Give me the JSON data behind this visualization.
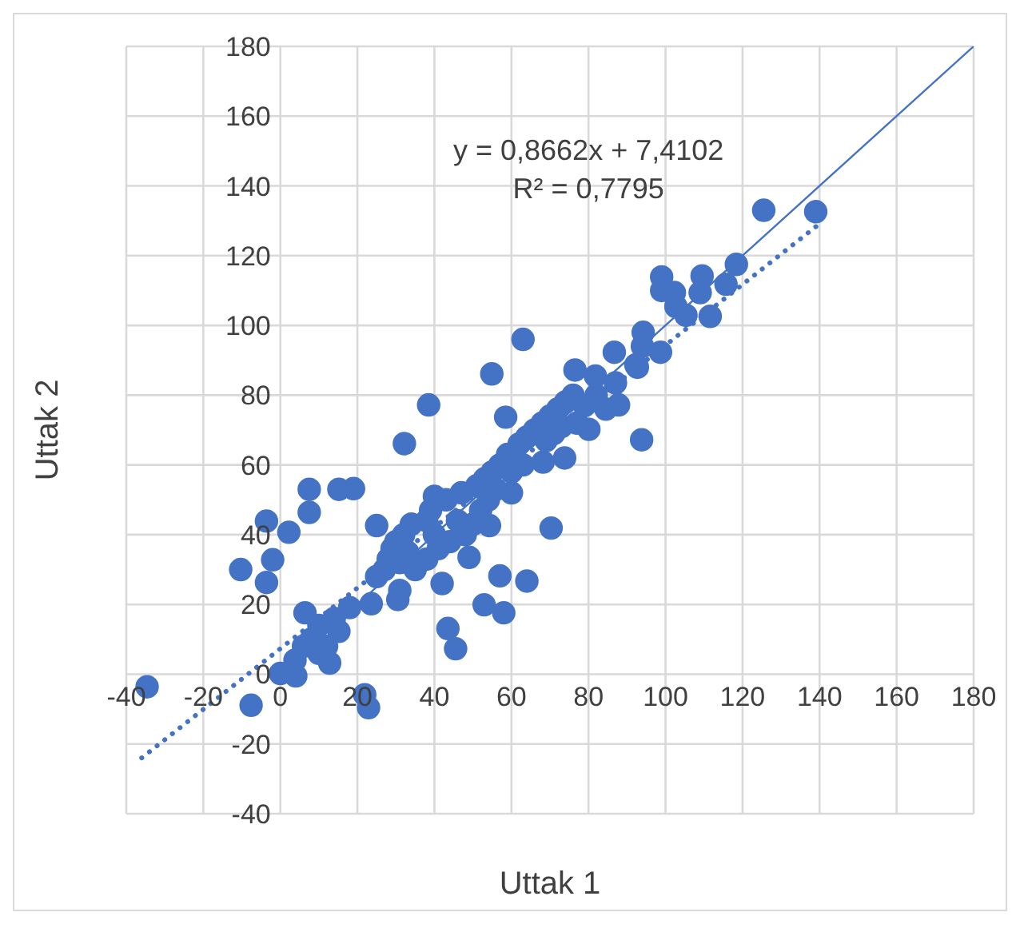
{
  "chart_data": {
    "type": "scatter",
    "xlabel": "Uttak 1",
    "ylabel": "Uttak 2",
    "annotations": [
      "y = 0,8662x + 7,4102",
      "R² = 0,7795"
    ],
    "xlim": [
      -40,
      180
    ],
    "ylim": [
      -40,
      180
    ],
    "xticks": [
      -40,
      -20,
      0,
      20,
      40,
      60,
      80,
      100,
      120,
      140,
      160,
      180
    ],
    "yticks": [
      -40,
      -20,
      0,
      20,
      40,
      60,
      80,
      100,
      120,
      140,
      160,
      180
    ],
    "grid": true,
    "legend": false,
    "marker": "circle",
    "series": [
      {
        "color": "#4472c4",
        "x": [
          125.5,
          139,
          118.4,
          115.7,
          109.5,
          109,
          111.6,
          99,
          99,
          102.3,
          102.7,
          105.3,
          98.7,
          94.2,
          94,
          92.3,
          86.7,
          76.5,
          81.8,
          63,
          54.9,
          38.5,
          58.5,
          32.2,
          7.5,
          15.2,
          19,
          7.5,
          -3.6,
          2.2,
          -2,
          -10.3,
          -3.6,
          25,
          70.3,
          49,
          42,
          57,
          64,
          52.9,
          58,
          43.5,
          45.5,
          30.5,
          31,
          23.6,
          18,
          6.4,
          15.2,
          12.8,
          0,
          4,
          3.8,
          -34.6,
          -7.6,
          21.9,
          22.9,
          8,
          10,
          12,
          14,
          10,
          6,
          87.8,
          84.5,
          93.8,
          80.1,
          73.8,
          68.2,
          54.3,
          92.7,
          87,
          25,
          27,
          28,
          29,
          30,
          31,
          32,
          33,
          34,
          35,
          38,
          38,
          39,
          40,
          40,
          41,
          43,
          44,
          46,
          47,
          48,
          50,
          51,
          52,
          53,
          54,
          55,
          56,
          57,
          59,
          60,
          60,
          62,
          63,
          64,
          66,
          68,
          69,
          70,
          71,
          72,
          73,
          74,
          76,
          77,
          79,
          82
        ],
        "values": [
          133,
          132.6,
          117.5,
          111.8,
          114.2,
          109.4,
          102.6,
          113.9,
          110,
          109.4,
          105.4,
          102.9,
          92.3,
          98,
          94,
          88.7,
          92.3,
          87.2,
          85.5,
          96,
          86.1,
          77.2,
          73.7,
          66.1,
          53,
          53,
          53.2,
          46.4,
          43.9,
          40.7,
          32.8,
          30,
          26.3,
          42.6,
          41.9,
          33.5,
          26,
          28.2,
          26.7,
          19.9,
          17.6,
          13.1,
          7.3,
          21.4,
          24,
          20.2,
          19.1,
          17.6,
          12.3,
          3.2,
          0.2,
          -0.5,
          4,
          -3.6,
          -8.9,
          -5.9,
          -9.6,
          10,
          14,
          8,
          16,
          6,
          8,
          77.2,
          76,
          67.2,
          70.2,
          62,
          60.8,
          42.6,
          88,
          83.5,
          28,
          30,
          33,
          36,
          38,
          32,
          40,
          35,
          43,
          30,
          44,
          33,
          47,
          40,
          51,
          36,
          50,
          38,
          44,
          52,
          40,
          43,
          54,
          47,
          56,
          50,
          58,
          53,
          60,
          63,
          58,
          52,
          66,
          60,
          68,
          70,
          72,
          67,
          74,
          69,
          76,
          71,
          78,
          80,
          72,
          77,
          80
        ]
      },
      {
        "type": "line",
        "color": "#4472c4",
        "x": [
          0,
          180
        ],
        "values": [
          0,
          180
        ],
        "line_style": "solid",
        "marker": "none"
      },
      {
        "type": "line",
        "color": "#4472c4",
        "x": [
          -36,
          141
        ],
        "values": [
          -24,
          130
        ],
        "line_style": "dotted",
        "marker": "none"
      }
    ]
  }
}
